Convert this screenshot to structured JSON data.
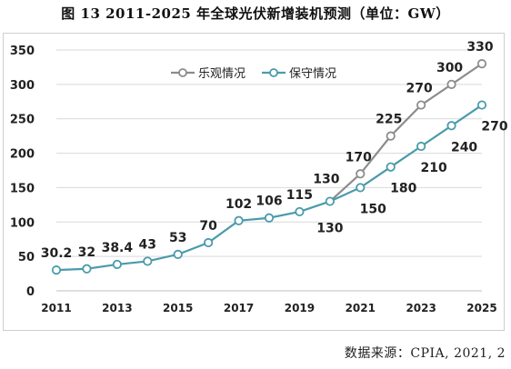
{
  "chart_data": {
    "type": "line",
    "title": "图 13 2011-2025 年全球光伏新增装机预测（单位：GW）",
    "source": "数据来源：CPIA, 2021, 2",
    "xlabel": "",
    "ylabel": "",
    "ylim": [
      0,
      350
    ],
    "yticks": [
      "0",
      "50",
      "100",
      "150",
      "200",
      "250",
      "300",
      "350"
    ],
    "x": [
      2011,
      2012,
      2013,
      2014,
      2015,
      2016,
      2017,
      2018,
      2019,
      2020,
      2021,
      2022,
      2023,
      2024,
      2025
    ],
    "xtick_labels": [
      "2011",
      "2013",
      "2015",
      "2017",
      "2019",
      "2021",
      "2023",
      "2025"
    ],
    "grid": true,
    "legend_position": "top-right",
    "series": [
      {
        "name": "乐观情况",
        "color": "#8c8c8c",
        "values": [
          null,
          null,
          null,
          null,
          null,
          null,
          null,
          null,
          null,
          null,
          170,
          225,
          270,
          300,
          330
        ],
        "labels": [
          "",
          "",
          "",
          "",
          "",
          "",
          "",
          "",
          "",
          "",
          "170",
          "225",
          "270",
          "300",
          "330"
        ]
      },
      {
        "name": "保守情况",
        "color": "#4a9bab",
        "values": [
          30.2,
          32,
          38.4,
          43,
          53,
          70,
          102,
          106,
          115,
          130,
          150,
          180,
          210,
          240,
          270
        ],
        "labels": [
          "30.2",
          "32",
          "38.4",
          "43",
          "53",
          "70",
          "102",
          "106",
          "115",
          "130",
          "150",
          "180",
          "210",
          "240",
          "270"
        ]
      }
    ],
    "shared_point_label": "130"
  }
}
